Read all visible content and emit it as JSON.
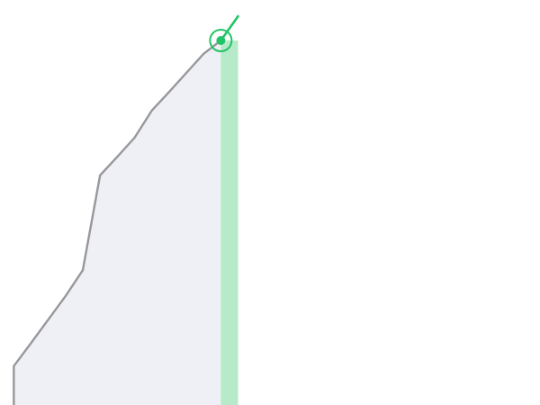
{
  "colors": {
    "background": "#ffffff",
    "area_fill": "#eff0f5",
    "line_gray": "#97979c",
    "accent_green": "#22c565",
    "band_green": "#b7eac8"
  },
  "chart_data": {
    "type": "area",
    "title": "",
    "xlabel": "",
    "ylabel": "",
    "x": [
      0,
      1,
      2,
      3,
      4,
      5,
      6,
      7,
      8,
      9,
      10,
      11,
      12
    ],
    "xlim": [
      -0.8,
      30.5
    ],
    "ylim": [
      0,
      100
    ],
    "grid": false,
    "legend": "none",
    "series": [
      {
        "role": "history",
        "color_key": "line_gray",
        "x": [
          0,
          0,
          1,
          2,
          3,
          4,
          5,
          6,
          7,
          8,
          9,
          10,
          11,
          12
        ],
        "values": [
          0,
          9.6,
          15.3,
          21.1,
          26.9,
          33.3,
          56.7,
          61.3,
          66.0,
          72.7,
          77.3,
          82.0,
          86.7,
          90.0
        ]
      },
      {
        "role": "live",
        "color_key": "accent_green",
        "x": [
          12,
          13
        ],
        "values": [
          90.0,
          96.0
        ]
      }
    ],
    "highlight": {
      "x": 12,
      "y": 90.0,
      "band_x_range": [
        12,
        13
      ],
      "band_color_key": "band_green"
    }
  }
}
